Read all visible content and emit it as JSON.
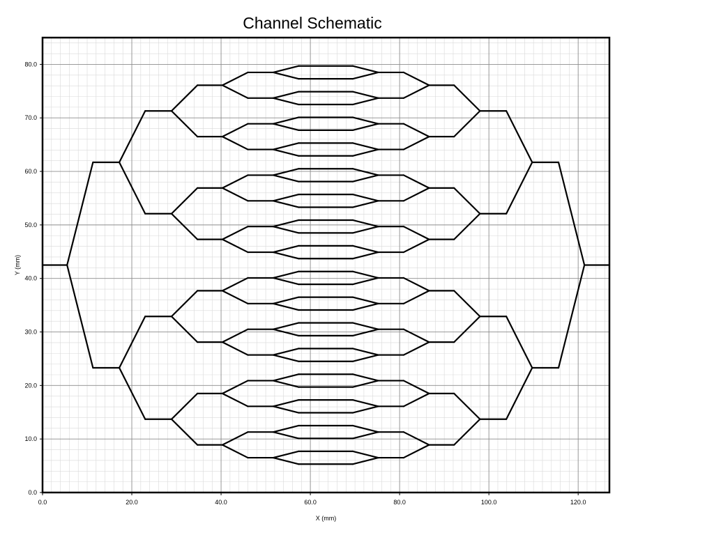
{
  "title": "Channel Schematic",
  "chart_data": {
    "type": "diagram",
    "title": "Channel Schematic",
    "xlabel": "X (mm)",
    "ylabel": "Y (mm)",
    "xlim": [
      0,
      127
    ],
    "ylim": [
      0,
      85
    ],
    "x_ticks": [
      "0.0",
      "20.0",
      "40.0",
      "60.0",
      "80.0",
      "100.0",
      "120.0"
    ],
    "y_ticks": [
      "0.0",
      "10.0",
      "20.0",
      "30.0",
      "40.0",
      "50.0",
      "60.0",
      "70.0",
      "80.0"
    ],
    "grid": true,
    "tree": {
      "inlet_y": 42.5,
      "levels": 5,
      "x_split": [
        5.5,
        17.2,
        28.9,
        40.3,
        51.7
      ],
      "x_split_right": [
        121.4,
        109.7,
        98.0,
        86.6,
        75.2
      ],
      "pad_length": [
        5.8,
        5.8,
        5.8,
        5.7,
        5.7
      ],
      "center_segment": [
        57.4,
        69.5
      ]
    },
    "line_color": "#000000",
    "grid_major_color": "#8c8c8c",
    "grid_minor_color": "#d9d9d9"
  }
}
